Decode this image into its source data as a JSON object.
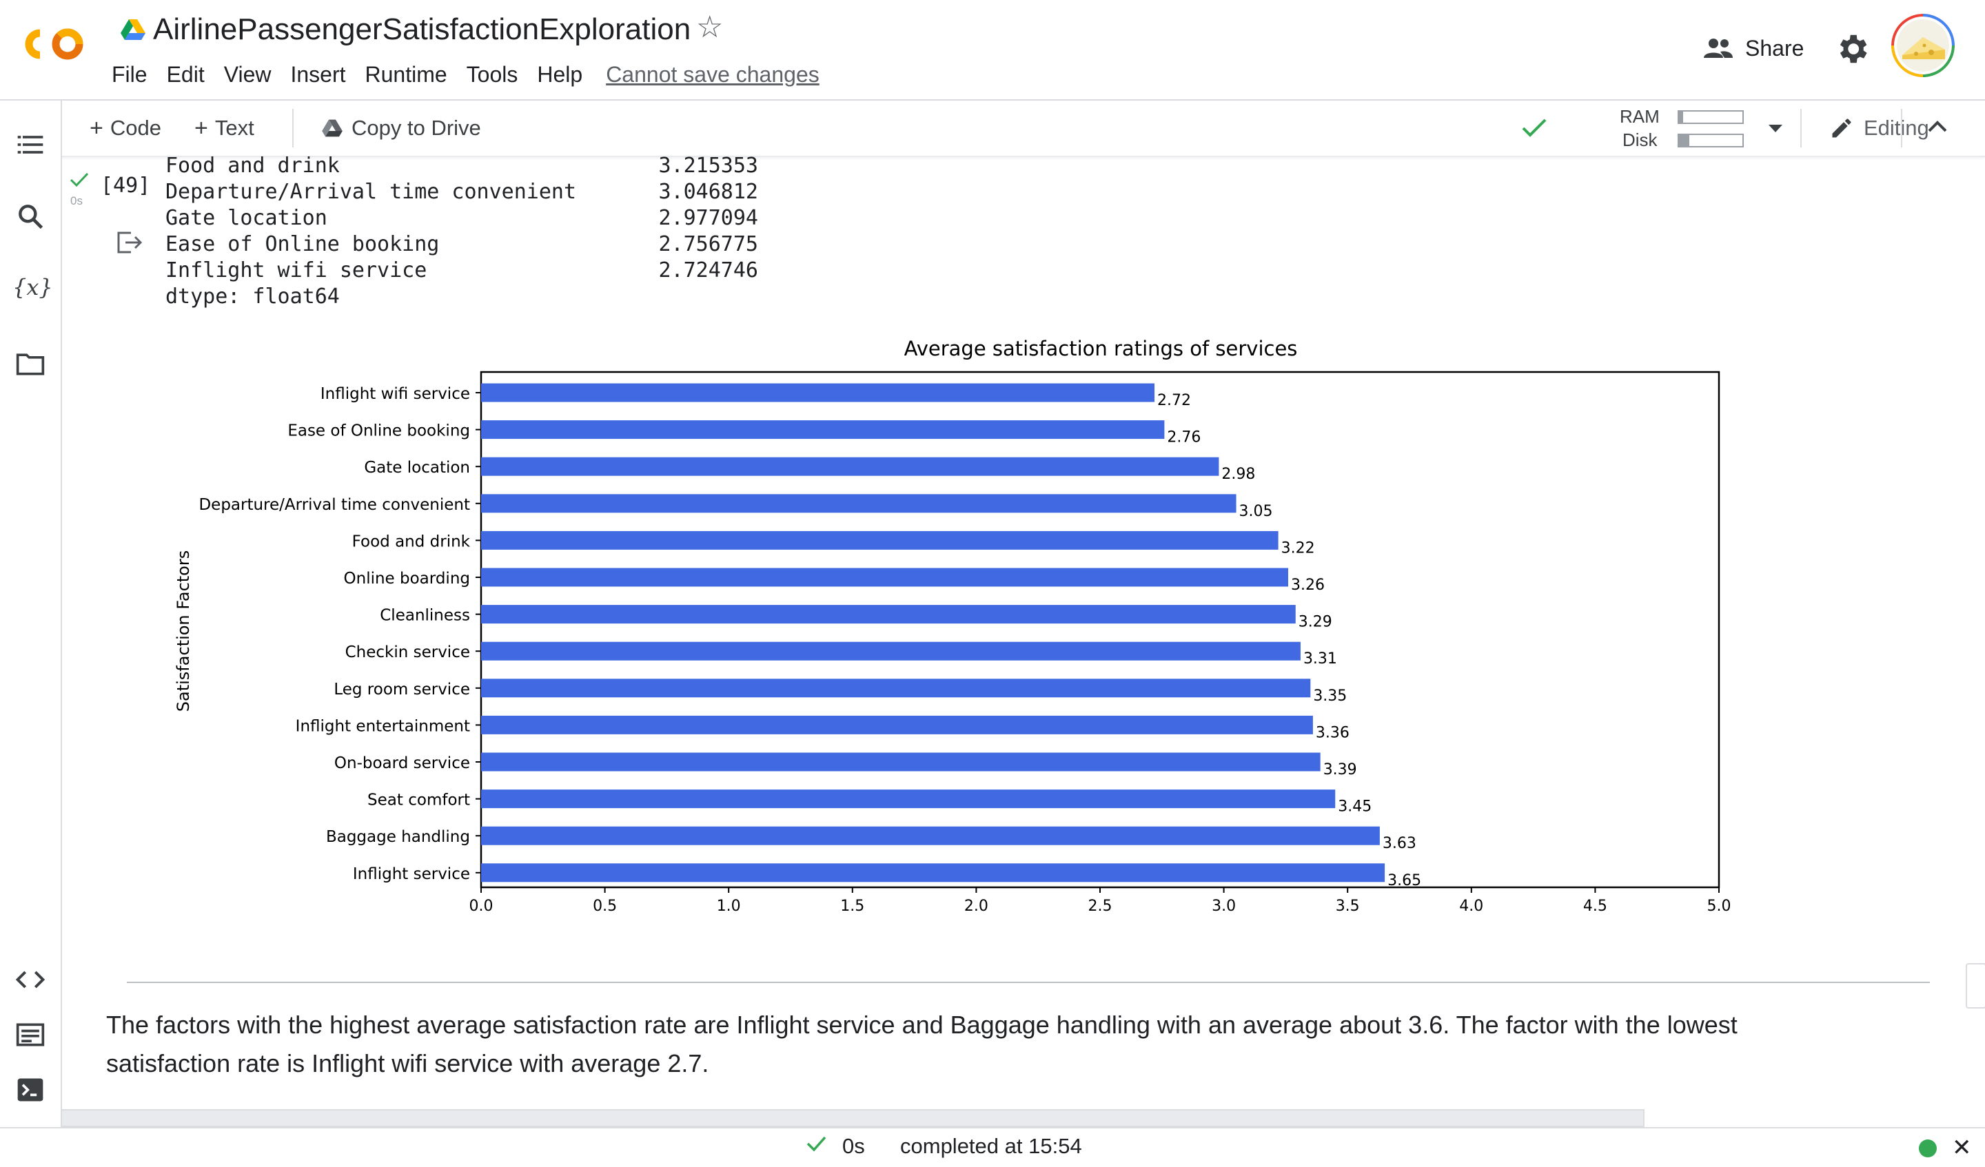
{
  "app": {
    "notebook_title": "AirlinePassengerSatisfactionExploration",
    "menu": [
      "File",
      "Edit",
      "View",
      "Insert",
      "Runtime",
      "Tools",
      "Help"
    ],
    "save_status": "Cannot save changes",
    "share_label": "Share"
  },
  "toolbar": {
    "code_label": "Code",
    "text_label": "Text",
    "copy_to_drive_label": "Copy to Drive",
    "ram_label": "RAM",
    "disk_label": "Disk",
    "ram_usage": 0.06,
    "disk_usage": 0.16,
    "editing_label": "Editing"
  },
  "cell": {
    "execution_count": "[49]",
    "runtime": "0s",
    "output_rows": [
      {
        "name": "Food and drink",
        "value": "3.215353"
      },
      {
        "name": "Departure/Arrival time convenient",
        "value": "3.046812"
      },
      {
        "name": "Gate location",
        "value": "2.977094"
      },
      {
        "name": "Ease of Online booking",
        "value": "2.756775"
      },
      {
        "name": "Inflight wifi service",
        "value": "2.724746"
      }
    ],
    "dtype_line": "dtype: float64"
  },
  "chart_data": {
    "type": "bar",
    "orientation": "horizontal",
    "title": "Average satisfaction ratings of services",
    "ylabel": "Satisfaction Factors",
    "xlabel": "",
    "xlim": [
      0,
      5
    ],
    "xticks": [
      "0.0",
      "0.5",
      "1.0",
      "1.5",
      "2.0",
      "2.5",
      "3.0",
      "3.5",
      "4.0",
      "4.5",
      "5.0"
    ],
    "categories": [
      "Inflight wifi service",
      "Ease of Online booking",
      "Gate location",
      "Departure/Arrival time convenient",
      "Food and drink",
      "Online boarding",
      "Cleanliness",
      "Checkin service",
      "Leg room service",
      "Inflight entertainment",
      "On-board service",
      "Seat comfort",
      "Baggage handling",
      "Inflight service"
    ],
    "values": [
      2.72,
      2.76,
      2.98,
      3.05,
      3.22,
      3.26,
      3.29,
      3.31,
      3.35,
      3.36,
      3.39,
      3.45,
      3.63,
      3.65
    ],
    "data_labels": [
      "2.72",
      "2.76",
      "2.98",
      "3.05",
      "3.22",
      "3.26",
      "3.29",
      "3.31",
      "3.35",
      "3.36",
      "3.39",
      "3.45",
      "3.63",
      "3.65"
    ],
    "bar_color": "#4169e1",
    "grid": false
  },
  "markdown": {
    "text": "The factors with the highest average satisfaction rate are Inflight service and Baggage handling with an average about 3.6. The factor with the lowest satisfaction rate is Inflight wifi service with average 2.7."
  },
  "status": {
    "time": "0s",
    "completed": "completed at 15:54"
  },
  "colors": {
    "check_green": "#34a853",
    "logo_orange": "#f9ab00",
    "logo_dark_orange": "#e8710a"
  }
}
